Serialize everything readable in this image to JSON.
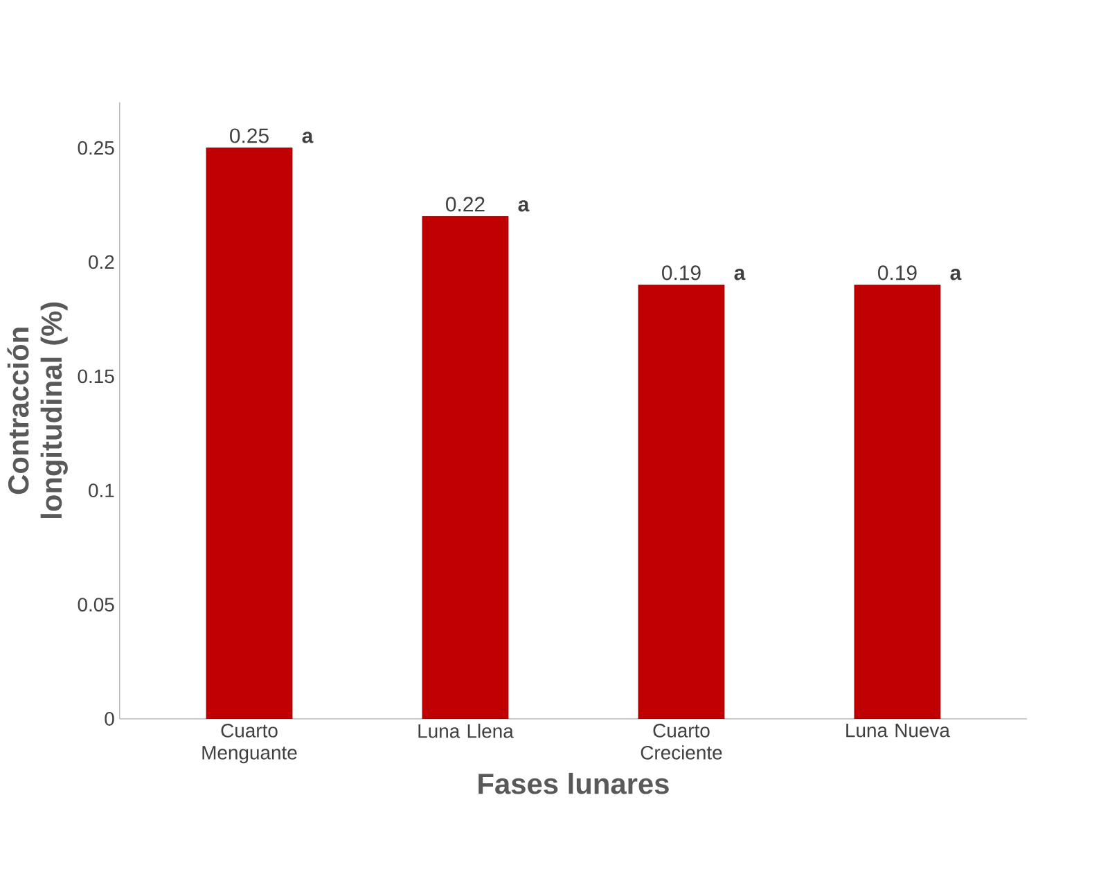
{
  "chart_data": {
    "type": "bar",
    "xlabel": "Fases lunares",
    "ylabel": "Contracción longitudinal (%)",
    "categories": [
      "Cuarto Menguante",
      "Luna Llena",
      "Cuarto Creciente",
      "Luna Nueva"
    ],
    "values": [
      0.25,
      0.22,
      0.19,
      0.19
    ],
    "color": "#c00000",
    "data_labels": true,
    "ylim": [
      0,
      0.27
    ],
    "yticks": [
      0,
      0.05,
      0.1,
      0.15,
      0.2,
      0.25
    ],
    "annotations": [
      {
        "text": "a",
        "x": "Cuarto Menguante",
        "y": 0.25
      },
      {
        "text": "a",
        "x": "Luna Llena",
        "y": 0.22
      },
      {
        "text": "a",
        "x": "Cuarto Creciente",
        "y": 0.19
      },
      {
        "text": "a",
        "x": "Luna Nueva",
        "y": 0.19
      }
    ]
  }
}
